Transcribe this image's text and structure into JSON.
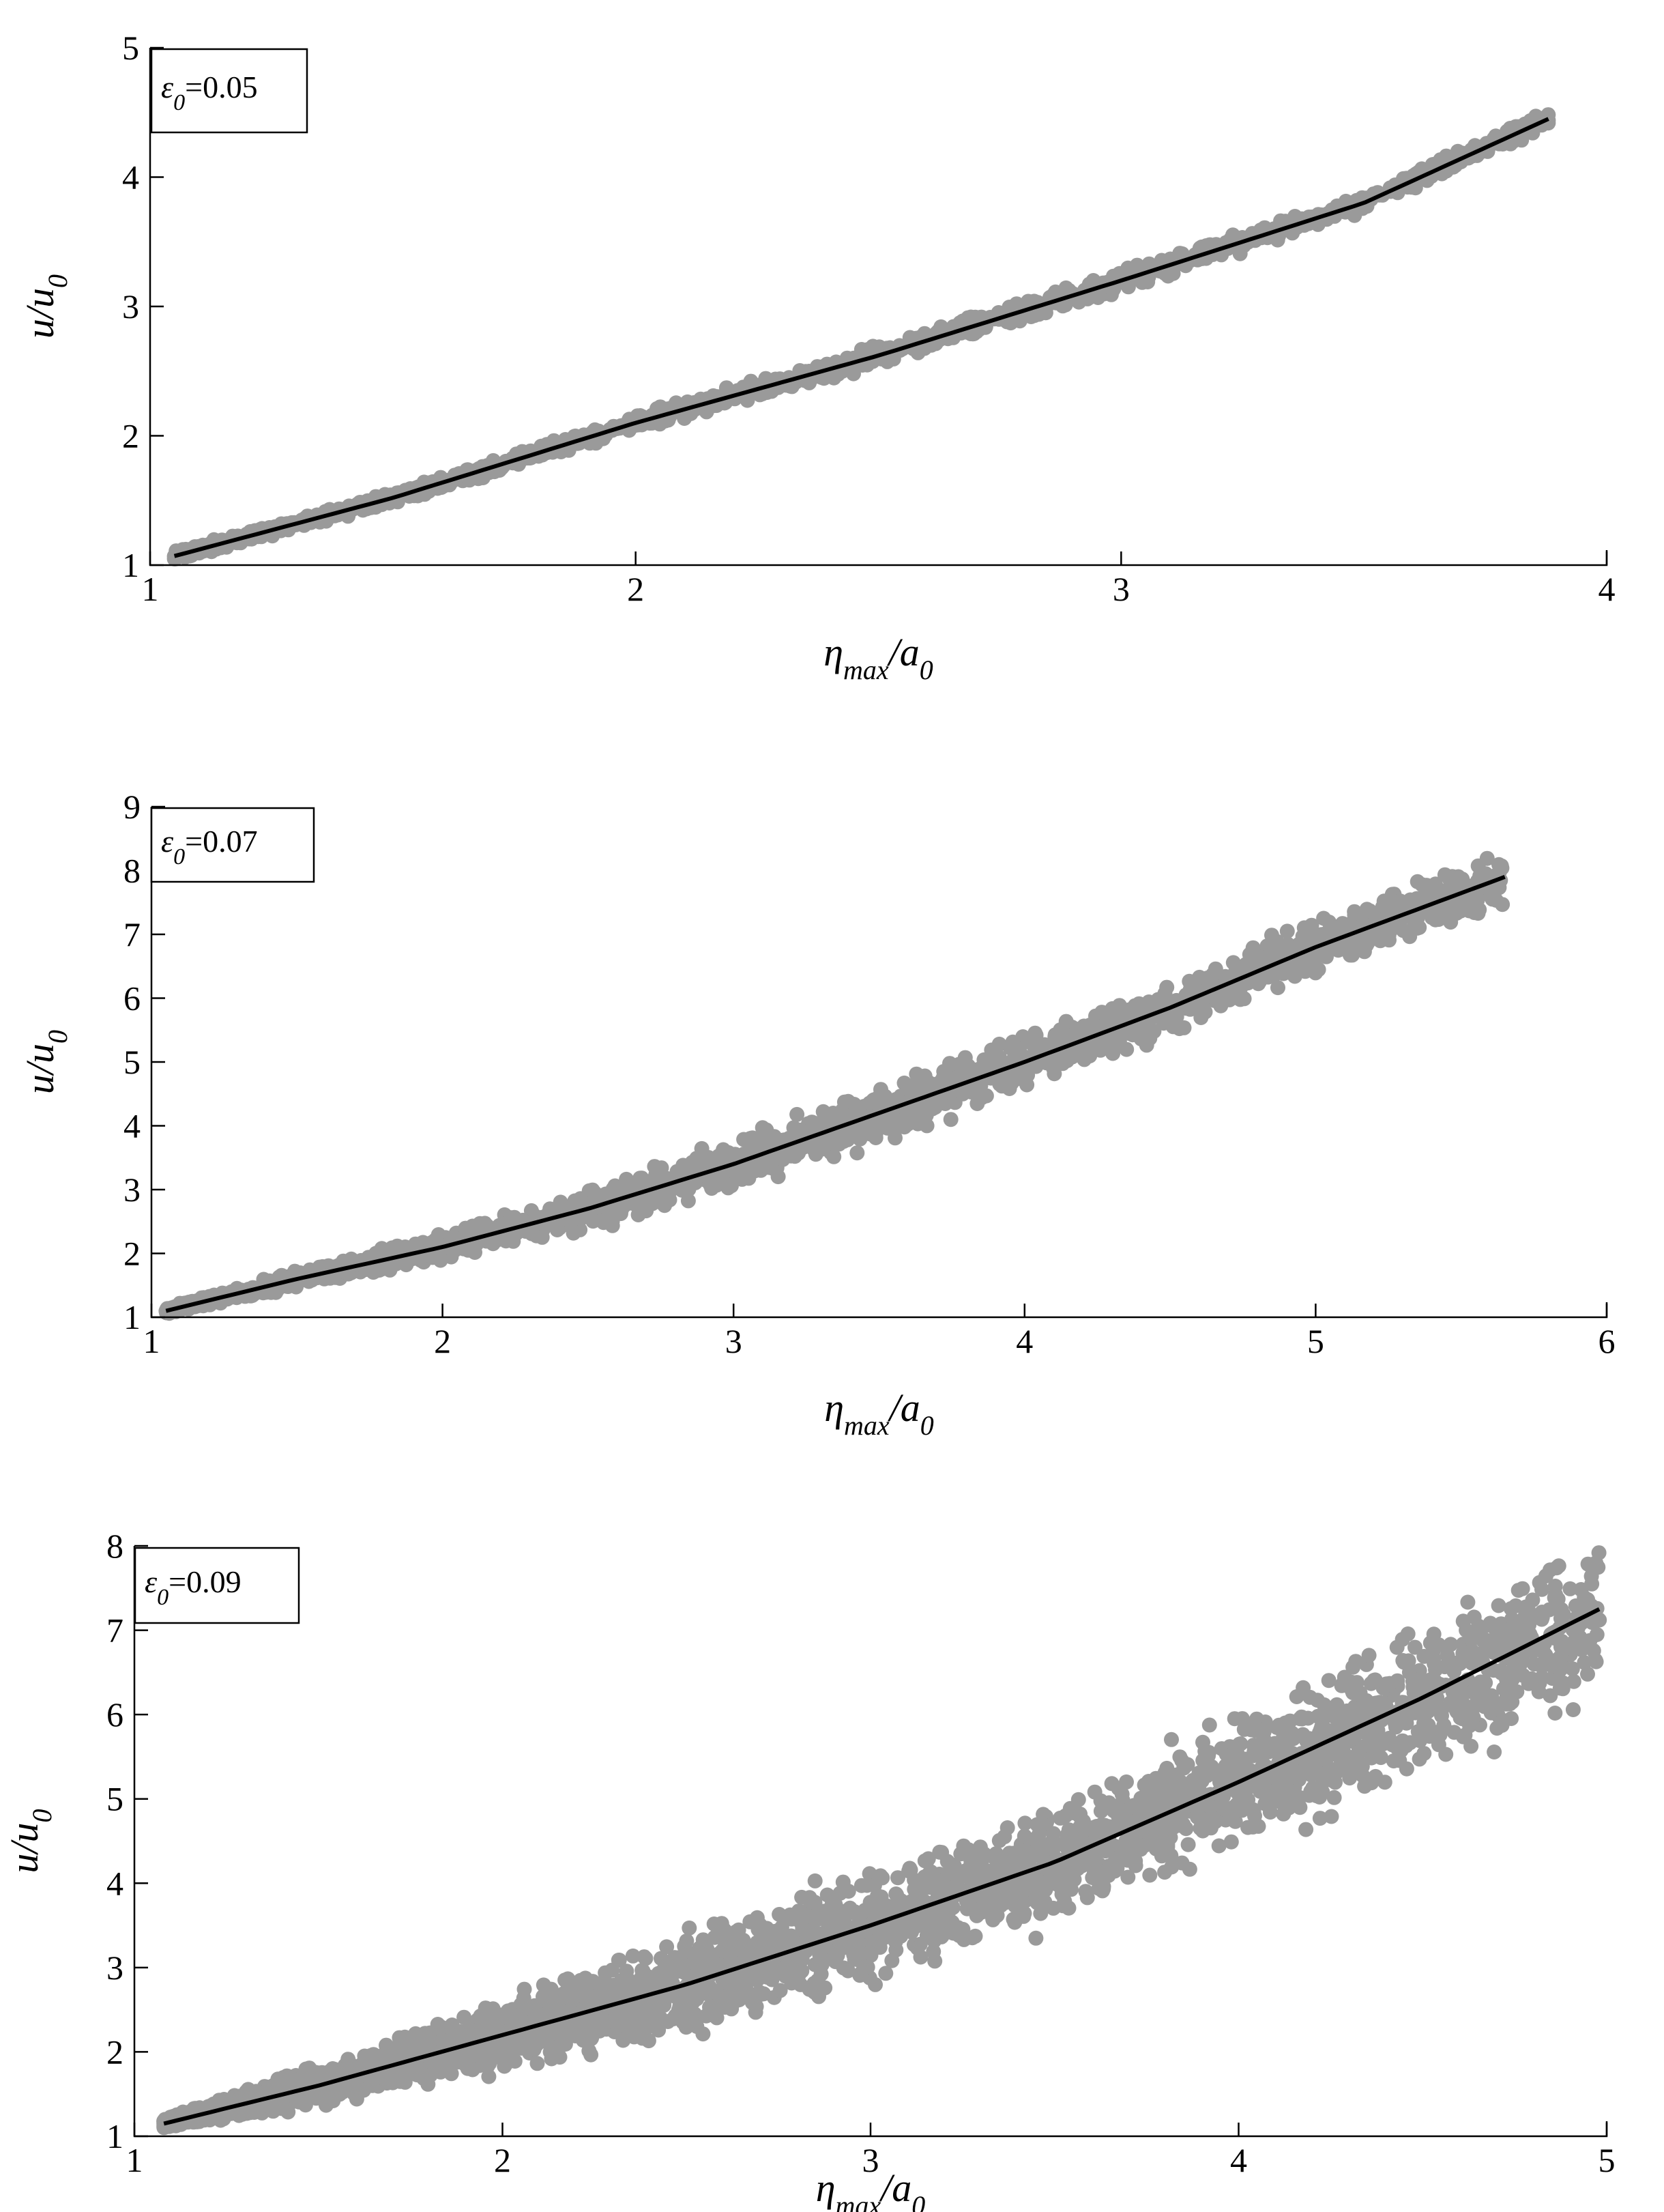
{
  "colors": {
    "scatter": "#9a9a9a",
    "fit": "#000000",
    "axis": "#000000",
    "background": "#ffffff"
  },
  "chart_data": [
    {
      "type": "scatter",
      "xlabel": {
        "main": "η",
        "sub": "max",
        "rest": "/a",
        "sub2": "0"
      },
      "ylabel": {
        "main": "u/u",
        "sub": "0"
      },
      "legend": {
        "symbol": "ε",
        "sub": "0",
        "value": "=0.05",
        "position": "top-left"
      },
      "xlim": [
        1,
        4
      ],
      "ylim": [
        1,
        5
      ],
      "xticks": [
        "1",
        "2",
        "3",
        "4"
      ],
      "yticks": [
        "1",
        "2",
        "3",
        "4",
        "5"
      ],
      "grid": false,
      "series": [
        {
          "kind": "scatter-cloud",
          "x_range": [
            1.05,
            3.88
          ],
          "center": [
            [
              1.05,
              1.07
            ],
            [
              1.5,
              1.52
            ],
            [
              2.0,
              2.1
            ],
            [
              2.5,
              2.62
            ],
            [
              3.0,
              3.2
            ],
            [
              3.5,
              3.8
            ],
            [
              3.88,
              4.45
            ]
          ],
          "spread": [
            [
              1.05,
              0.02
            ],
            [
              2.0,
              0.04
            ],
            [
              3.0,
              0.05
            ],
            [
              3.88,
              0.04
            ]
          ],
          "count": 1400,
          "seed": 11
        },
        {
          "kind": "fit-line",
          "points": [
            [
              1.05,
              1.07
            ],
            [
              1.5,
              1.52
            ],
            [
              2.0,
              2.1
            ],
            [
              2.5,
              2.62
            ],
            [
              3.0,
              3.2
            ],
            [
              3.5,
              3.8
            ],
            [
              3.88,
              4.45
            ]
          ]
        }
      ]
    },
    {
      "type": "scatter",
      "xlabel": {
        "main": "η",
        "sub": "max",
        "rest": "/a",
        "sub2": "0"
      },
      "ylabel": {
        "main": "u/u",
        "sub": "0"
      },
      "legend": {
        "symbol": "ε",
        "sub": "0",
        "value": "=0.07",
        "position": "top-left"
      },
      "xlim": [
        1,
        6
      ],
      "ylim": [
        1,
        9
      ],
      "xticks": [
        "1",
        "2",
        "3",
        "4",
        "5",
        "6"
      ],
      "yticks": [
        "1",
        "2",
        "3",
        "4",
        "5",
        "6",
        "7",
        "8",
        "9"
      ],
      "grid": false,
      "series": [
        {
          "kind": "scatter-cloud",
          "x_range": [
            1.05,
            5.65
          ],
          "center": [
            [
              1.05,
              1.1
            ],
            [
              1.5,
              1.6
            ],
            [
              2.0,
              2.1
            ],
            [
              2.5,
              2.7
            ],
            [
              3.0,
              3.4
            ],
            [
              3.5,
              4.2
            ],
            [
              4.0,
              5.0
            ],
            [
              4.5,
              5.85
            ],
            [
              5.0,
              6.8
            ],
            [
              5.65,
              7.9
            ]
          ],
          "spread": [
            [
              1.05,
              0.03
            ],
            [
              2.0,
              0.12
            ],
            [
              2.7,
              0.2
            ],
            [
              3.5,
              0.25
            ],
            [
              4.5,
              0.25
            ],
            [
              5.65,
              0.25
            ]
          ],
          "count": 2200,
          "seed": 23
        },
        {
          "kind": "fit-line",
          "points": [
            [
              1.05,
              1.1
            ],
            [
              1.5,
              1.6
            ],
            [
              2.0,
              2.1
            ],
            [
              2.5,
              2.7
            ],
            [
              3.0,
              3.4
            ],
            [
              3.5,
              4.2
            ],
            [
              4.0,
              5.0
            ],
            [
              4.5,
              5.85
            ],
            [
              5.0,
              6.8
            ],
            [
              5.65,
              7.9
            ]
          ]
        }
      ]
    },
    {
      "type": "scatter",
      "xlabel": {
        "main": "η",
        "sub": "max",
        "rest": "/a",
        "sub2": "0"
      },
      "ylabel": {
        "main": "u/u",
        "sub": "0"
      },
      "legend": {
        "symbol": "ε",
        "sub": "0",
        "value": "=0.09",
        "position": "top-left"
      },
      "xlim": [
        1,
        5
      ],
      "ylim": [
        1,
        8
      ],
      "xticks": [
        "1",
        "2",
        "3",
        "4",
        "5"
      ],
      "yticks": [
        "1",
        "2",
        "3",
        "4",
        "5",
        "6",
        "7",
        "8"
      ],
      "grid": false,
      "series": [
        {
          "kind": "scatter-cloud",
          "x_range": [
            1.08,
            4.98
          ],
          "center": [
            [
              1.08,
              1.15
            ],
            [
              1.5,
              1.6
            ],
            [
              2.0,
              2.2
            ],
            [
              2.5,
              2.8
            ],
            [
              3.0,
              3.5
            ],
            [
              3.5,
              4.25
            ],
            [
              4.0,
              5.2
            ],
            [
              4.5,
              6.2
            ],
            [
              4.98,
              7.2
            ]
          ],
          "spread": [
            [
              1.08,
              0.03
            ],
            [
              1.8,
              0.2
            ],
            [
              2.5,
              0.35
            ],
            [
              3.5,
              0.4
            ],
            [
              4.0,
              0.45
            ],
            [
              4.98,
              0.55
            ]
          ],
          "count": 3400,
          "seed": 37
        },
        {
          "kind": "fit-line",
          "points": [
            [
              1.08,
              1.15
            ],
            [
              1.5,
              1.6
            ],
            [
              2.0,
              2.2
            ],
            [
              2.5,
              2.8
            ],
            [
              3.0,
              3.5
            ],
            [
              3.5,
              4.25
            ],
            [
              4.0,
              5.2
            ],
            [
              4.5,
              6.2
            ],
            [
              4.98,
              7.25
            ]
          ]
        }
      ]
    }
  ]
}
